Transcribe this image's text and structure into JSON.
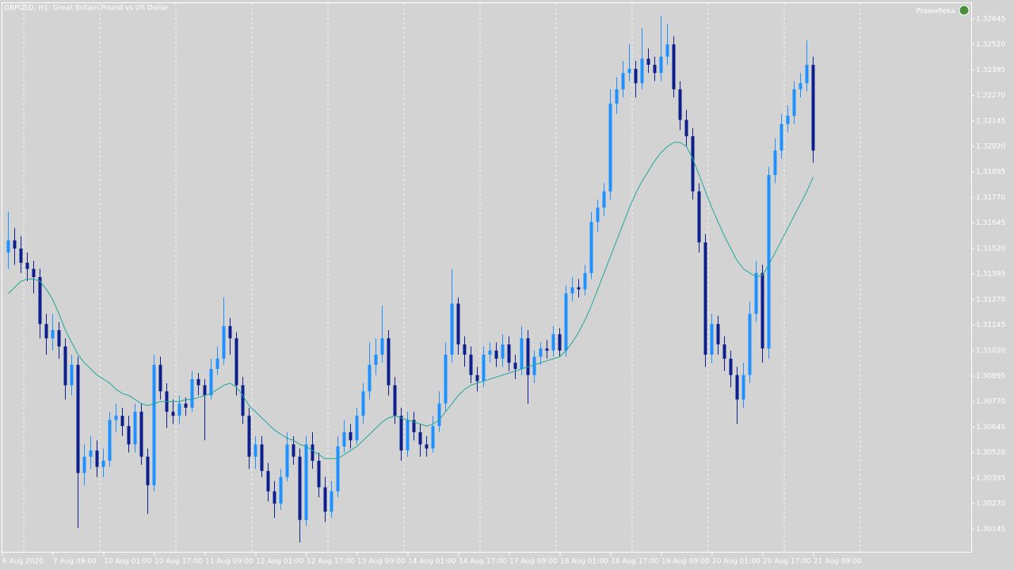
{
  "chart_data": {
    "type": "candlestick",
    "title": "GBPUSD, H1:  Great Britain Pound vs US Dollar",
    "badge": "PrawaReka",
    "bull_color": "#1e90ff",
    "bear_color": "#0d1f8c",
    "ylim": [
      1.3003,
      1.32726
    ],
    "yticks": [
      1.32645,
      {
        "value": 1.3252,
        "label": "1.32520"
      },
      1.32395,
      {
        "value": 1.3227,
        "label": "1.32270"
      },
      1.32145,
      {
        "value": 1.3202,
        "label": "1.32020"
      },
      1.31895,
      {
        "value": 1.3177,
        "label": "1.31770"
      },
      1.31645,
      {
        "value": 1.3152,
        "label": "1.31520"
      },
      1.31395,
      {
        "value": 1.3127,
        "label": "1.31270"
      },
      1.31145,
      {
        "value": 1.3102,
        "label": "1.31020"
      },
      1.30895,
      {
        "value": 1.3077,
        "label": "1.30770"
      },
      1.30645,
      {
        "value": 1.3052,
        "label": "1.30520"
      },
      1.30395,
      {
        "value": 1.3027,
        "label": "1.30270"
      },
      1.30145
    ],
    "time_labels": [
      "6 Aug 2020",
      "7 Aug 09:00",
      "10 Aug 01:00",
      "10 Aug 17:00",
      "11 Aug 09:00",
      "12 Aug 01:00",
      "12 Aug 17:00",
      "13 Aug 09:00",
      "14 Aug 01:00",
      "14 Aug 17:00",
      "17 Aug 09:00",
      "18 Aug 01:00",
      "18 Aug 17:00",
      "19 Aug 09:00",
      "20 Aug 01:00",
      "20 Aug 17:00",
      "21 Aug 09:00"
    ],
    "open": [
      1.315,
      1.3156,
      1.3152,
      1.3145,
      1.3142,
      1.3138,
      1.3115,
      1.3108,
      1.3112,
      1.3104,
      1.3085,
      1.3095,
      1.3042,
      1.305,
      1.3053,
      1.3045,
      1.3048,
      1.3068,
      1.307,
      1.3065,
      1.3056,
      1.3072,
      1.305,
      1.3036,
      1.3095,
      1.3082,
      1.3072,
      1.307,
      1.3076,
      1.3074,
      1.3088,
      1.3085,
      1.308,
      1.3093,
      1.3098,
      1.3114,
      1.3108,
      1.3085,
      1.307,
      1.305,
      1.3056,
      1.3043,
      1.3033,
      1.3027,
      1.304,
      1.3056,
      1.305,
      1.3019,
      1.3056,
      1.3048,
      1.3035,
      1.3023,
      1.3033,
      1.3055,
      1.3062,
      1.3058,
      1.307,
      1.3082,
      1.3095,
      1.31,
      1.3108,
      1.3085,
      1.307,
      1.3053,
      1.3068,
      1.3062,
      1.3056,
      1.3054,
      1.3065,
      1.3076,
      1.31,
      1.3125,
      1.3105,
      1.31,
      1.309,
      1.3087,
      1.31,
      1.3102,
      1.3098,
      1.3105,
      1.3096,
      1.3093,
      1.3108,
      1.309,
      1.3099,
      1.3103,
      1.3102,
      1.311,
      1.3102,
      1.313,
      1.3133,
      1.3132,
      1.314,
      1.3165,
      1.3172,
      1.318,
      1.3223,
      1.323,
      1.3238,
      1.324,
      1.3233,
      1.3245,
      1.3242,
      1.3238,
      1.3246,
      1.3252,
      1.323,
      1.3215,
      1.3207,
      1.318,
      1.3155,
      1.31,
      1.3115,
      1.3105,
      1.3098,
      1.309,
      1.3078,
      1.309,
      1.312,
      1.314,
      1.3103,
      1.3188,
      1.32,
      1.3213,
      1.3217,
      1.323,
      1.3233,
      1.3242
    ],
    "high": [
      1.317,
      1.3162,
      1.3158,
      1.315,
      1.3146,
      1.3142,
      1.312,
      1.312,
      1.3116,
      1.3108,
      1.31,
      1.3099,
      1.3056,
      1.306,
      1.3058,
      1.3054,
      1.3072,
      1.3076,
      1.3074,
      1.307,
      1.3076,
      1.3076,
      1.3054,
      1.31,
      1.3099,
      1.3086,
      1.3078,
      1.308,
      1.3079,
      1.3092,
      1.3091,
      1.3088,
      1.3098,
      1.3104,
      1.3128,
      1.3118,
      1.3111,
      1.3089,
      1.3074,
      1.306,
      1.306,
      1.3047,
      1.3038,
      1.3044,
      1.3062,
      1.306,
      1.3054,
      1.306,
      1.3062,
      1.3052,
      1.304,
      1.3038,
      1.306,
      1.3068,
      1.3066,
      1.3074,
      1.3086,
      1.3106,
      1.3108,
      1.3124,
      1.3112,
      1.3089,
      1.3074,
      1.3072,
      1.3072,
      1.3066,
      1.306,
      1.307,
      1.3082,
      1.3106,
      1.3142,
      1.3128,
      1.3109,
      1.3104,
      1.3094,
      1.3104,
      1.3106,
      1.3106,
      1.311,
      1.3109,
      1.31,
      1.3114,
      1.3112,
      1.3102,
      1.3106,
      1.3107,
      1.3114,
      1.3113,
      1.3134,
      1.3138,
      1.3137,
      1.3144,
      1.317,
      1.3176,
      1.3184,
      1.323,
      1.3236,
      1.3244,
      1.3252,
      1.3244,
      1.326,
      1.325,
      1.3246,
      1.3266,
      1.3262,
      1.3256,
      1.3234,
      1.322,
      1.3211,
      1.3184,
      1.3159,
      1.312,
      1.3119,
      1.3109,
      1.3102,
      1.3094,
      1.3096,
      1.3126,
      1.3146,
      1.3144,
      1.3192,
      1.3206,
      1.3218,
      1.3222,
      1.3234,
      1.3238,
      1.3254,
      1.3246
    ],
    "low": [
      1.3142,
      1.3144,
      1.314,
      1.3136,
      1.313,
      1.3108,
      1.31,
      1.3102,
      1.3098,
      1.3078,
      1.308,
      1.3015,
      1.3036,
      1.3044,
      1.304,
      1.304,
      1.3045,
      1.3062,
      1.306,
      1.3052,
      1.3052,
      1.3046,
      1.3022,
      1.3033,
      1.3078,
      1.3064,
      1.3066,
      1.3066,
      1.307,
      1.3072,
      1.308,
      1.3058,
      1.3078,
      1.309,
      1.3095,
      1.31,
      1.308,
      1.3066,
      1.3044,
      1.3044,
      1.304,
      1.3028,
      1.302,
      1.3024,
      1.3038,
      1.3046,
      1.3008,
      1.3016,
      1.3044,
      1.303,
      1.3018,
      1.302,
      1.303,
      1.3052,
      1.3054,
      1.3056,
      1.3066,
      1.3078,
      1.309,
      1.3096,
      1.308,
      1.3066,
      1.3048,
      1.305,
      1.3058,
      1.305,
      1.305,
      1.3052,
      1.3062,
      1.3072,
      1.3096,
      1.31,
      1.3094,
      1.3086,
      1.3082,
      1.3084,
      1.3096,
      1.3094,
      1.3094,
      1.3092,
      1.3088,
      1.309,
      1.3076,
      1.3086,
      1.3095,
      1.3098,
      1.3099,
      1.3099,
      1.3099,
      1.3126,
      1.3128,
      1.3129,
      1.3137,
      1.316,
      1.3168,
      1.3176,
      1.3218,
      1.3226,
      1.3234,
      1.3226,
      1.323,
      1.3238,
      1.3234,
      1.3234,
      1.3242,
      1.3226,
      1.321,
      1.3202,
      1.3176,
      1.315,
      1.3094,
      1.3096,
      1.31,
      1.3092,
      1.3084,
      1.3066,
      1.3074,
      1.3086,
      1.3116,
      1.3096,
      1.3098,
      1.3184,
      1.3196,
      1.3209,
      1.3213,
      1.3226,
      1.3229,
      1.3194
    ],
    "close": [
      1.3156,
      1.3152,
      1.3145,
      1.3142,
      1.3138,
      1.3115,
      1.3108,
      1.3112,
      1.3104,
      1.3085,
      1.3095,
      1.3042,
      1.305,
      1.3053,
      1.3045,
      1.3048,
      1.3068,
      1.307,
      1.3065,
      1.3056,
      1.3072,
      1.305,
      1.3036,
      1.3095,
      1.3082,
      1.3072,
      1.307,
      1.3076,
      1.3074,
      1.3088,
      1.3085,
      1.308,
      1.3093,
      1.3098,
      1.3114,
      1.3108,
      1.3085,
      1.307,
      1.305,
      1.3056,
      1.3043,
      1.3033,
      1.3027,
      1.304,
      1.3056,
      1.305,
      1.3019,
      1.3056,
      1.3048,
      1.3035,
      1.3023,
      1.3033,
      1.3055,
      1.3062,
      1.3058,
      1.307,
      1.3082,
      1.3095,
      1.31,
      1.3108,
      1.3085,
      1.307,
      1.3053,
      1.3068,
      1.3062,
      1.3056,
      1.3054,
      1.3065,
      1.3076,
      1.31,
      1.3125,
      1.3105,
      1.31,
      1.309,
      1.3087,
      1.31,
      1.3102,
      1.3098,
      1.3105,
      1.3096,
      1.3093,
      1.3108,
      1.309,
      1.3099,
      1.3103,
      1.3102,
      1.311,
      1.3102,
      1.313,
      1.3133,
      1.3132,
      1.314,
      1.3165,
      1.3172,
      1.318,
      1.3223,
      1.323,
      1.3238,
      1.324,
      1.3233,
      1.3245,
      1.3242,
      1.3238,
      1.3246,
      1.3252,
      1.323,
      1.3215,
      1.3207,
      1.318,
      1.3155,
      1.31,
      1.3115,
      1.3105,
      1.3098,
      1.309,
      1.3078,
      1.309,
      1.312,
      1.314,
      1.3103,
      1.3188,
      1.32,
      1.3213,
      1.3217,
      1.323,
      1.3233,
      1.3242,
      1.32
    ],
    "ma": {
      "color": "#20a89a",
      "values": [
        1.313,
        1.3133,
        1.3136,
        1.3137,
        1.3137,
        1.3136,
        1.3132,
        1.3127,
        1.312,
        1.3112,
        1.3106,
        1.31,
        1.3096,
        1.3093,
        1.309,
        1.3088,
        1.3086,
        1.3083,
        1.3081,
        1.308,
        1.3078,
        1.3076,
        1.3075,
        1.3076,
        1.3077,
        1.3077,
        1.3077,
        1.3077,
        1.3078,
        1.3078,
        1.3079,
        1.308,
        1.3081,
        1.3083,
        1.3085,
        1.3086,
        1.3084,
        1.308,
        1.3075,
        1.3072,
        1.3069,
        1.3066,
        1.3063,
        1.3061,
        1.3059,
        1.3058,
        1.3056,
        1.3055,
        1.3053,
        1.3051,
        1.3049,
        1.3049,
        1.3049,
        1.3051,
        1.3053,
        1.3055,
        1.3058,
        1.3061,
        1.3064,
        1.3067,
        1.3069,
        1.307,
        1.3069,
        1.3068,
        1.3067,
        1.3066,
        1.3065,
        1.3066,
        1.3068,
        1.3072,
        1.3076,
        1.308,
        1.3083,
        1.3085,
        1.3086,
        1.3087,
        1.3088,
        1.3089,
        1.309,
        1.3091,
        1.3092,
        1.3093,
        1.3094,
        1.3095,
        1.3096,
        1.3097,
        1.3098,
        1.3099,
        1.3102,
        1.3106,
        1.3111,
        1.3117,
        1.3124,
        1.3132,
        1.314,
        1.3148,
        1.3156,
        1.3164,
        1.3172,
        1.3179,
        1.3185,
        1.319,
        1.3195,
        1.3199,
        1.3202,
        1.3204,
        1.3204,
        1.3202,
        1.3196,
        1.3188,
        1.318,
        1.3172,
        1.3165,
        1.3158,
        1.3152,
        1.3146,
        1.3142,
        1.314,
        1.3138,
        1.3139,
        1.3144,
        1.315,
        1.3156,
        1.3162,
        1.3168,
        1.3174,
        1.318,
        1.3187
      ]
    }
  }
}
